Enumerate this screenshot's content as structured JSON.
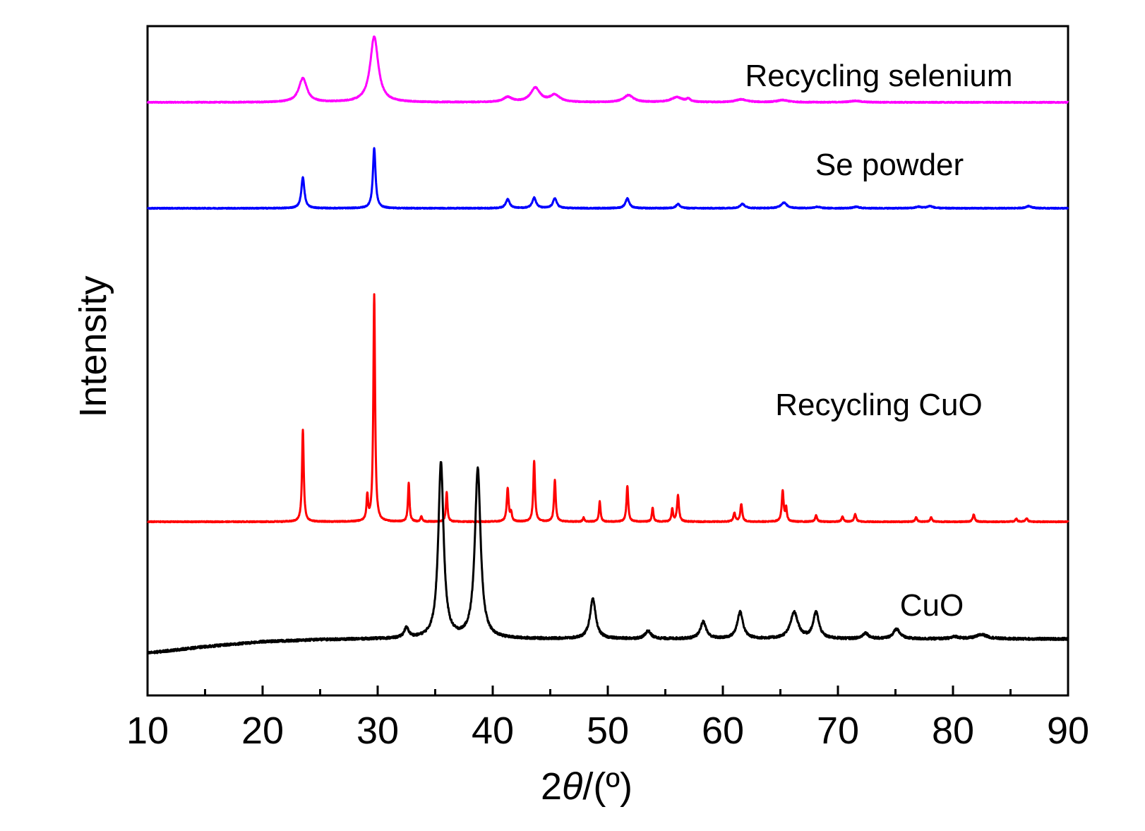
{
  "chart_data": {
    "type": "line",
    "title": "",
    "xlabel": "2θ/(º)",
    "xlabel_parts": {
      "prefix": "2",
      "theta": "θ",
      "suffix": "/(º)"
    },
    "ylabel": "Intensity",
    "xlim": [
      10,
      90
    ],
    "xticks": [
      10,
      20,
      30,
      40,
      50,
      60,
      70,
      80,
      90
    ],
    "yticks_shown": false,
    "grid": false,
    "legend": "none (series labelled inline)",
    "series": [
      {
        "name": "Recycling selenium",
        "color": "#ff00ff",
        "offset": 780,
        "baseline": 0,
        "peaks": [
          [
            23.5,
            34,
            0.42
          ],
          [
            29.7,
            93,
            0.42
          ],
          [
            41.3,
            7,
            0.45
          ],
          [
            43.7,
            20,
            0.5
          ],
          [
            45.4,
            10,
            0.5
          ],
          [
            51.8,
            10,
            0.5
          ],
          [
            56.0,
            7,
            0.6
          ],
          [
            57.0,
            4,
            0.2
          ],
          [
            61.6,
            4,
            0.6
          ],
          [
            65.2,
            3,
            0.6
          ],
          [
            71.5,
            2,
            0.6
          ]
        ]
      },
      {
        "name": "Se powder",
        "color": "#0000ff",
        "offset": 630,
        "baseline": 0,
        "peaks": [
          [
            23.5,
            44,
            0.16
          ],
          [
            29.7,
            85,
            0.14
          ],
          [
            41.3,
            13,
            0.2
          ],
          [
            43.6,
            15,
            0.2
          ],
          [
            45.4,
            14,
            0.2
          ],
          [
            51.7,
            14,
            0.2
          ],
          [
            56.1,
            6,
            0.2
          ],
          [
            61.7,
            6,
            0.25
          ],
          [
            65.3,
            8,
            0.3
          ],
          [
            68.2,
            2,
            0.3
          ],
          [
            71.6,
            2,
            0.3
          ],
          [
            77.0,
            2,
            0.3
          ],
          [
            78.0,
            3,
            0.3
          ],
          [
            86.6,
            3,
            0.3
          ]
        ]
      },
      {
        "name": "Recycling CuO",
        "color": "#ff0000",
        "offset": 186,
        "baseline": 0,
        "peaks": [
          [
            23.5,
            130,
            0.09
          ],
          [
            29.1,
            35,
            0.08
          ],
          [
            29.7,
            322,
            0.09
          ],
          [
            32.7,
            55,
            0.08
          ],
          [
            33.8,
            8,
            0.08
          ],
          [
            36.0,
            42,
            0.08
          ],
          [
            41.3,
            47,
            0.1
          ],
          [
            41.6,
            12,
            0.08
          ],
          [
            43.6,
            86,
            0.09
          ],
          [
            45.4,
            59,
            0.09
          ],
          [
            47.9,
            6,
            0.08
          ],
          [
            49.3,
            29,
            0.08
          ],
          [
            51.7,
            51,
            0.09
          ],
          [
            53.9,
            20,
            0.08
          ],
          [
            55.6,
            18,
            0.08
          ],
          [
            56.1,
            37,
            0.1
          ],
          [
            61.0,
            12,
            0.1
          ],
          [
            61.6,
            25,
            0.1
          ],
          [
            65.2,
            43,
            0.1
          ],
          [
            65.5,
            18,
            0.08
          ],
          [
            68.1,
            9,
            0.1
          ],
          [
            70.4,
            7,
            0.1
          ],
          [
            71.5,
            11,
            0.1
          ],
          [
            76.8,
            6,
            0.1
          ],
          [
            78.1,
            6,
            0.1
          ],
          [
            81.8,
            10,
            0.1
          ],
          [
            85.5,
            4,
            0.1
          ],
          [
            86.4,
            5,
            0.1
          ]
        ]
      },
      {
        "name": "CuO",
        "color": "#000000",
        "offset": 0,
        "baseline_points": [
          [
            10,
            0
          ],
          [
            15,
            9
          ],
          [
            20,
            16
          ],
          [
            25,
            19
          ],
          [
            30,
            20
          ],
          [
            35,
            20
          ],
          [
            40,
            20
          ],
          [
            50,
            20
          ],
          [
            60,
            20
          ],
          [
            70,
            20
          ],
          [
            80,
            20
          ],
          [
            90,
            20
          ]
        ],
        "peaks": [
          [
            32.5,
            14,
            0.25
          ],
          [
            35.5,
            248,
            0.28
          ],
          [
            38.7,
            240,
            0.3
          ],
          [
            48.7,
            56,
            0.3
          ],
          [
            53.5,
            11,
            0.3
          ],
          [
            58.3,
            24,
            0.3
          ],
          [
            61.5,
            38,
            0.3
          ],
          [
            66.2,
            37,
            0.4
          ],
          [
            68.1,
            37,
            0.3
          ],
          [
            72.4,
            8,
            0.3
          ],
          [
            75.1,
            14,
            0.35
          ],
          [
            80.2,
            3,
            0.4
          ],
          [
            82.5,
            6,
            0.6
          ]
        ]
      }
    ]
  }
}
